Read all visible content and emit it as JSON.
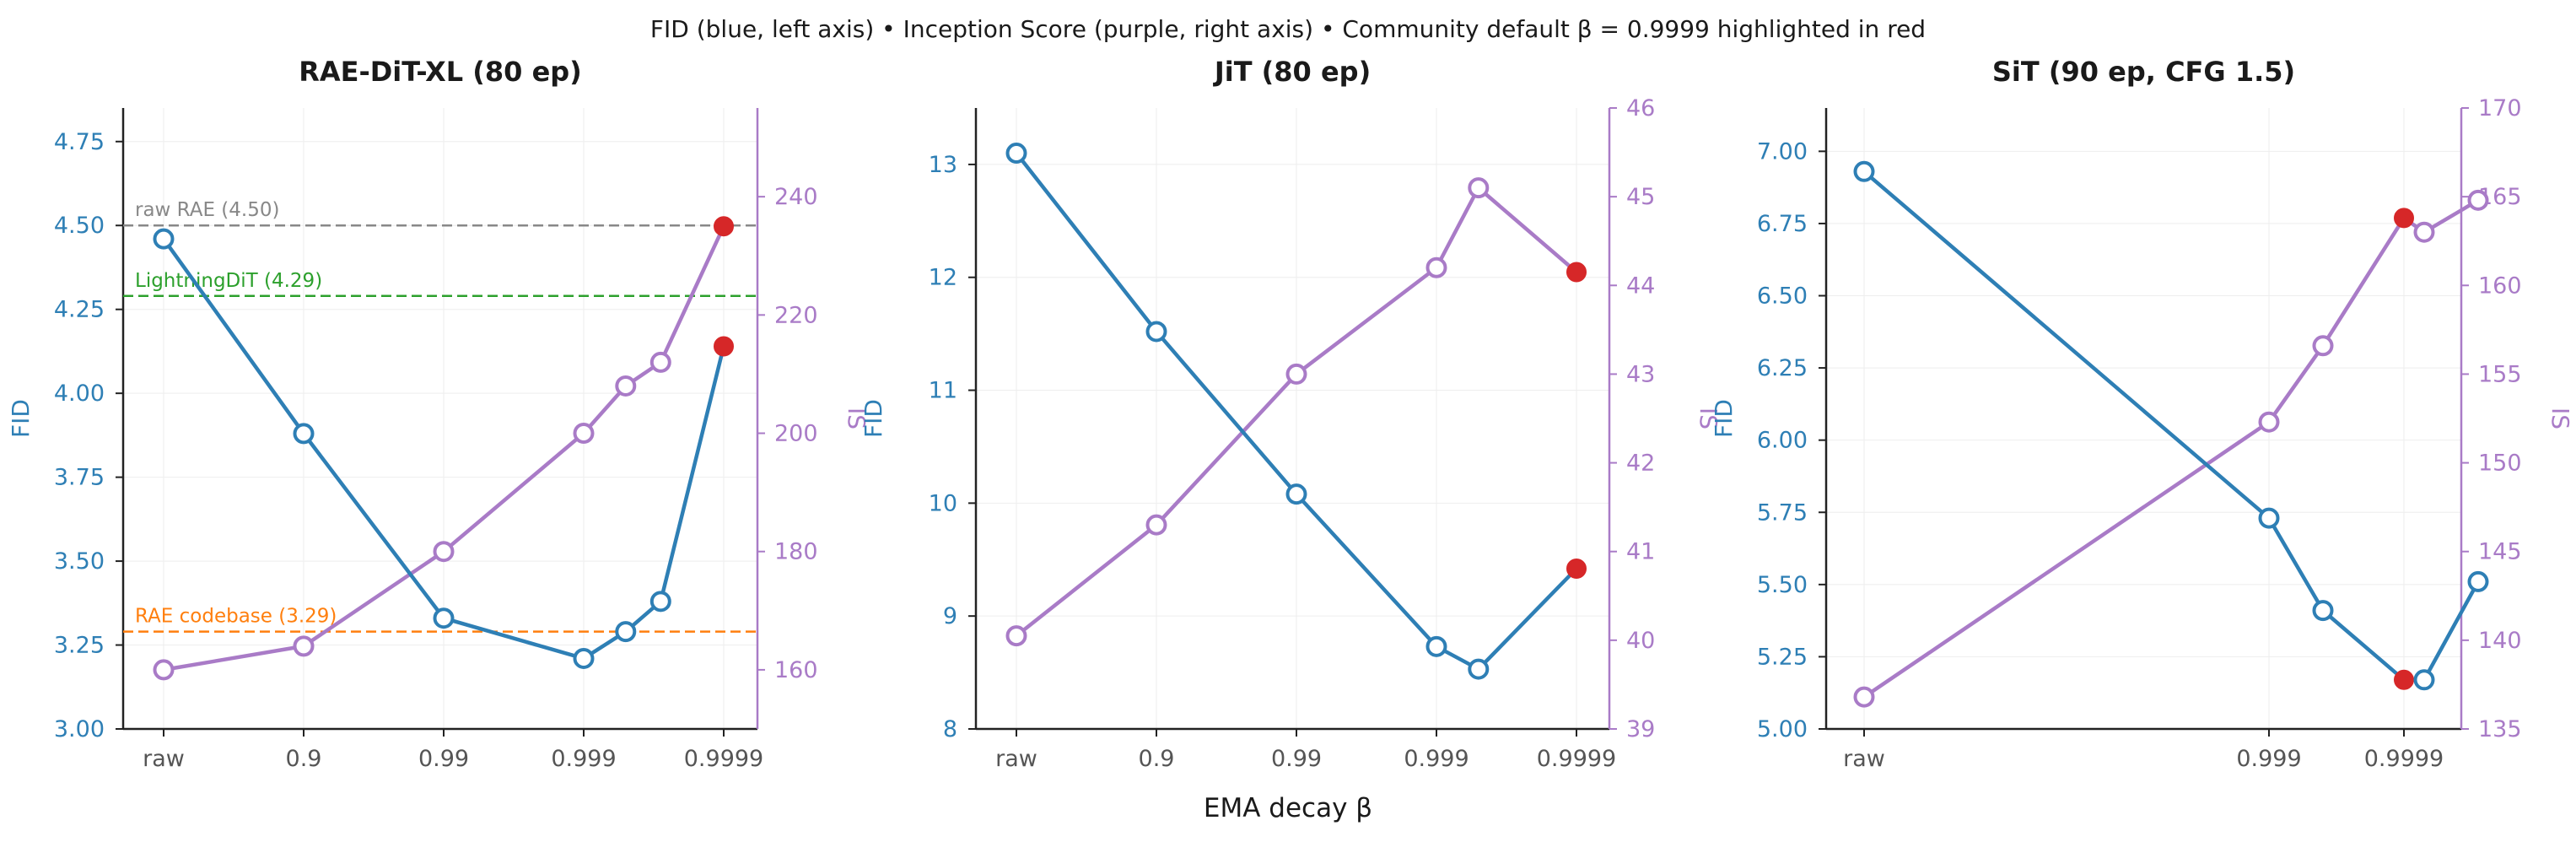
{
  "suptitle": "FID (blue, left axis)   •   Inception Score (purple, right axis)   •   Community default β = 0.9999 highlighted in red",
  "xlabel": "EMA decay  β",
  "colors": {
    "fid": "#2e7fb5",
    "is": "#a97bc7",
    "highlight": "#d62728",
    "tick_text": "#555555"
  },
  "chart_data": [
    {
      "type": "line",
      "title": "RAE-DiT-XL  (80 ep)",
      "x_ticks": [
        "raw",
        "0.9",
        "0.99",
        "0.999",
        "0.9999"
      ],
      "ylabel_left": "FID",
      "ylabel_right": "IS",
      "ylim_left": [
        3.0,
        4.85
      ],
      "yticks_left": [
        "3.00",
        "3.25",
        "3.50",
        "3.75",
        "4.00",
        "4.25",
        "4.50",
        "4.75"
      ],
      "ylim_right": [
        150,
        255
      ],
      "yticks_right": [
        "160",
        "180",
        "200",
        "220",
        "240"
      ],
      "series": [
        {
          "name": "FID",
          "axis": "left",
          "x": [
            0,
            1,
            2,
            3,
            3.3,
            3.55,
            4
          ],
          "values": [
            4.46,
            3.88,
            3.33,
            3.21,
            3.29,
            3.38,
            4.14
          ],
          "highlight_index": 6
        },
        {
          "name": "IS",
          "axis": "right",
          "x": [
            0,
            1,
            2,
            3,
            3.3,
            3.55,
            4
          ],
          "values": [
            160,
            164,
            180,
            200,
            208,
            212,
            235
          ],
          "highlight_index": 6
        }
      ],
      "references": [
        {
          "label": "raw RAE (4.50)",
          "value": 4.5,
          "color": "#888888"
        },
        {
          "label": "LightningDiT (4.29)",
          "value": 4.29,
          "color": "#2ca02c"
        },
        {
          "label": "RAE codebase (3.29)",
          "value": 3.29,
          "color": "#ff7f0e"
        }
      ]
    },
    {
      "type": "line",
      "title": "JiT  (80 ep)",
      "x_ticks": [
        "raw",
        "0.9",
        "0.99",
        "0.999",
        "0.9999"
      ],
      "ylabel_left": "FID",
      "ylabel_right": "IS",
      "ylim_left": [
        8,
        13.5
      ],
      "yticks_left": [
        "8",
        "9",
        "10",
        "11",
        "12",
        "13"
      ],
      "ylim_right": [
        39,
        46
      ],
      "yticks_right": [
        "39",
        "40",
        "41",
        "42",
        "43",
        "44",
        "45",
        "46"
      ],
      "series": [
        {
          "name": "FID",
          "axis": "left",
          "x": [
            0,
            1,
            2,
            3,
            3.3,
            4
          ],
          "values": [
            13.1,
            11.52,
            10.08,
            8.73,
            8.53,
            9.42
          ],
          "highlight_index": 5
        },
        {
          "name": "IS",
          "axis": "right",
          "x": [
            0,
            1,
            2,
            3,
            3.3,
            4
          ],
          "values": [
            40.05,
            41.3,
            43.0,
            44.2,
            45.1,
            44.15
          ],
          "highlight_index": 5
        }
      ],
      "references": []
    },
    {
      "type": "line",
      "title": "SiT  (90 ep, CFG 1.5)",
      "x_ticks": [
        "raw",
        "0.999",
        "0.9999"
      ],
      "x_tick_pos": [
        0,
        3,
        4
      ],
      "ylabel_left": "FID",
      "ylabel_right": "IS",
      "ylim_left": [
        5.0,
        7.15
      ],
      "yticks_left": [
        "5.00",
        "5.25",
        "5.50",
        "5.75",
        "6.00",
        "6.25",
        "6.50",
        "6.75",
        "7.00"
      ],
      "ylim_right": [
        135,
        170
      ],
      "yticks_right": [
        "135",
        "140",
        "145",
        "150",
        "155",
        "160",
        "165",
        "170"
      ],
      "series": [
        {
          "name": "FID",
          "axis": "left",
          "x": [
            0,
            3,
            3.4,
            4,
            4.15,
            4.55
          ],
          "values": [
            6.93,
            5.73,
            5.41,
            5.17,
            5.17,
            5.51
          ],
          "highlight_index": 3
        },
        {
          "name": "IS",
          "axis": "right",
          "x": [
            0,
            3,
            3.4,
            4,
            4.15,
            4.55
          ],
          "values": [
            136.8,
            152.3,
            156.6,
            163.8,
            163.0,
            164.8
          ],
          "highlight_index": 3
        }
      ],
      "references": []
    }
  ]
}
